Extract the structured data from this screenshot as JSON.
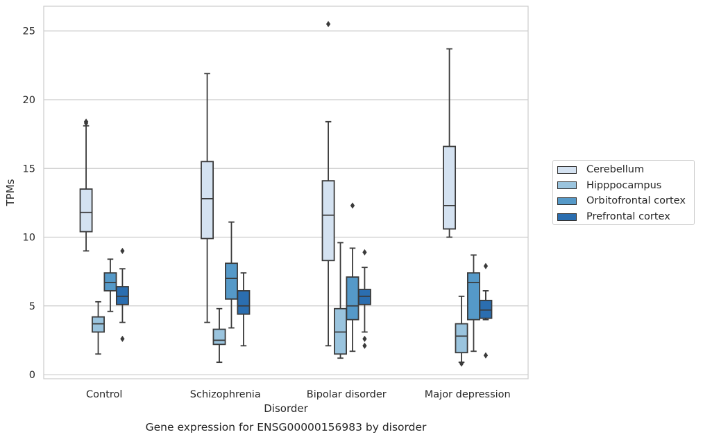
{
  "chart_data": {
    "type": "box",
    "title": "",
    "caption": "Gene expression for ENSG00000156983 by disorder",
    "xlabel": "Disorder",
    "ylabel": "TPMs",
    "ylim": [
      -0.3,
      26.8
    ],
    "yticks": [
      0,
      5,
      10,
      15,
      20,
      25
    ],
    "grid": "horizontal",
    "legend_position": "right",
    "categories": [
      "Control",
      "Schizophrenia",
      "Bipolar disorder",
      "Major depression"
    ],
    "series": [
      {
        "name": "Cerebellum",
        "color": "#d4e2f1",
        "boxes": [
          {
            "whislo": 9.0,
            "q1": 10.4,
            "med": 11.8,
            "q3": 13.5,
            "whishi": 18.1,
            "fliers": [
              18.3,
              18.4
            ]
          },
          {
            "whislo": 3.8,
            "q1": 9.9,
            "med": 12.8,
            "q3": 15.5,
            "whishi": 21.9,
            "fliers": []
          },
          {
            "whislo": 2.1,
            "q1": 8.3,
            "med": 11.6,
            "q3": 14.1,
            "whishi": 18.4,
            "fliers": [
              25.5
            ]
          },
          {
            "whislo": 10.0,
            "q1": 10.6,
            "med": 12.3,
            "q3": 16.6,
            "whishi": 23.7,
            "fliers": []
          }
        ]
      },
      {
        "name": "Hipppocampus",
        "color": "#9ac4de",
        "boxes": [
          {
            "whislo": 1.5,
            "q1": 3.1,
            "med": 3.7,
            "q3": 4.2,
            "whishi": 5.3,
            "fliers": []
          },
          {
            "whislo": 0.9,
            "q1": 2.2,
            "med": 2.5,
            "q3": 3.3,
            "whishi": 4.8,
            "fliers": []
          },
          {
            "whislo": 1.2,
            "q1": 1.5,
            "med": 3.1,
            "q3": 4.8,
            "whishi": 9.6,
            "fliers": []
          },
          {
            "whislo": 0.9,
            "q1": 1.6,
            "med": 2.8,
            "q3": 3.7,
            "whishi": 5.7,
            "fliers": [
              0.8
            ]
          }
        ]
      },
      {
        "name": "Orbitofrontal cortex",
        "color": "#5599c8",
        "boxes": [
          {
            "whislo": 4.6,
            "q1": 6.1,
            "med": 6.7,
            "q3": 7.4,
            "whishi": 8.4,
            "fliers": []
          },
          {
            "whislo": 3.4,
            "q1": 5.5,
            "med": 7.0,
            "q3": 8.1,
            "whishi": 11.1,
            "fliers": []
          },
          {
            "whislo": 1.7,
            "q1": 4.0,
            "med": 5.0,
            "q3": 7.1,
            "whishi": 9.2,
            "fliers": [
              12.3
            ]
          },
          {
            "whislo": 1.7,
            "q1": 4.0,
            "med": 6.7,
            "q3": 7.4,
            "whishi": 8.7,
            "fliers": []
          }
        ]
      },
      {
        "name": "Prefrontal cortex",
        "color": "#2b6eb0",
        "boxes": [
          {
            "whislo": 3.8,
            "q1": 5.1,
            "med": 5.7,
            "q3": 6.4,
            "whishi": 7.7,
            "fliers": [
              9.0,
              2.6
            ]
          },
          {
            "whislo": 2.1,
            "q1": 4.4,
            "med": 5.0,
            "q3": 6.1,
            "whishi": 7.4,
            "fliers": []
          },
          {
            "whislo": 3.1,
            "q1": 5.1,
            "med": 5.7,
            "q3": 6.2,
            "whishi": 7.8,
            "fliers": [
              8.9,
              2.6,
              2.1
            ]
          },
          {
            "whislo": 4.0,
            "q1": 4.1,
            "med": 4.7,
            "q3": 5.4,
            "whishi": 6.1,
            "fliers": [
              7.9,
              1.4
            ]
          }
        ]
      }
    ]
  }
}
